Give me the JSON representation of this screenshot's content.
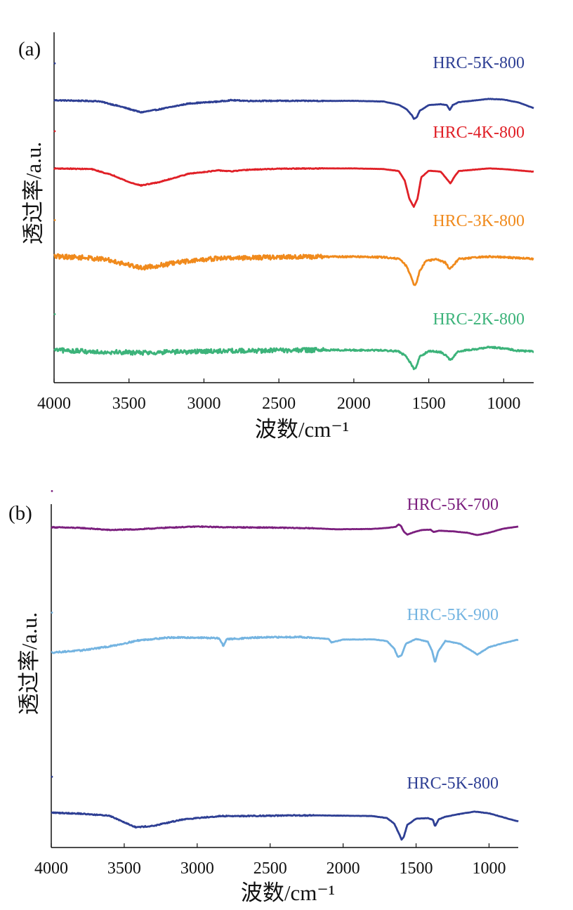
{
  "chart_data": [
    {
      "type": "line",
      "panel_label": "(a)",
      "xlabel": "波数/cm⁻¹",
      "ylabel": "透过率/a.u.",
      "xlim": [
        4000,
        800
      ],
      "x_reversed": true,
      "ylim": [
        0,
        100
      ],
      "xticks": [
        4000,
        3500,
        3000,
        2500,
        2000,
        1500,
        1000
      ],
      "series": [
        {
          "name": "HRC-5K-800",
          "color": "#2e3f94",
          "baseline": 84.1,
          "noise": 0.15,
          "points": [
            [
              4000,
              84
            ],
            [
              3700,
              83.7
            ],
            [
              3550,
              82
            ],
            [
              3420,
              80.3
            ],
            [
              3300,
              81.2
            ],
            [
              3100,
              83
            ],
            [
              2900,
              83.6
            ],
            [
              2820,
              84
            ],
            [
              2700,
              83.8
            ],
            [
              2500,
              83.8
            ],
            [
              2000,
              83.8
            ],
            [
              1800,
              83.6
            ],
            [
              1700,
              82.6
            ],
            [
              1650,
              81.3
            ],
            [
              1610,
              79.3
            ],
            [
              1600,
              78.3
            ],
            [
              1580,
              78.8
            ],
            [
              1560,
              80.8
            ],
            [
              1500,
              82.5
            ],
            [
              1420,
              82.8
            ],
            [
              1380,
              82.5
            ],
            [
              1360,
              81
            ],
            [
              1340,
              82.5
            ],
            [
              1300,
              83.4
            ],
            [
              1200,
              83.9
            ],
            [
              1100,
              84.4
            ],
            [
              1000,
              84.2
            ],
            [
              900,
              83.3
            ],
            [
              800,
              81.6
            ]
          ]
        },
        {
          "name": "HRC-4K-800",
          "color": "#e02027",
          "baseline": 63.4,
          "noise": 0.12,
          "points": [
            [
              4000,
              63.2
            ],
            [
              3750,
              63
            ],
            [
              3600,
              61
            ],
            [
              3500,
              59
            ],
            [
              3420,
              58
            ],
            [
              3300,
              59
            ],
            [
              3100,
              61.6
            ],
            [
              2900,
              62.6
            ],
            [
              2820,
              62.3
            ],
            [
              2700,
              62.8
            ],
            [
              2500,
              63.1
            ],
            [
              2200,
              63.2
            ],
            [
              2000,
              63.2
            ],
            [
              1800,
              63
            ],
            [
              1700,
              62.4
            ],
            [
              1660,
              59.5
            ],
            [
              1630,
              54
            ],
            [
              1600,
              51.5
            ],
            [
              1575,
              54
            ],
            [
              1550,
              60.5
            ],
            [
              1500,
              62.5
            ],
            [
              1420,
              62.2
            ],
            [
              1380,
              60
            ],
            [
              1355,
              58.6
            ],
            [
              1330,
              60.6
            ],
            [
              1300,
              62.4
            ],
            [
              1200,
              62.8
            ],
            [
              1100,
              63.2
            ],
            [
              1000,
              63
            ],
            [
              900,
              62.6
            ],
            [
              800,
              62.2
            ]
          ]
        },
        {
          "name": "HRC-3K-800",
          "color": "#f08a1c",
          "baseline": 36.3,
          "noise": 0.7,
          "points": [
            [
              4000,
              36.4
            ],
            [
              3800,
              36
            ],
            [
              3650,
              35.4
            ],
            [
              3500,
              33.8
            ],
            [
              3420,
              32.9
            ],
            [
              3300,
              33.6
            ],
            [
              3100,
              35
            ],
            [
              2900,
              35.8
            ],
            [
              2700,
              36
            ],
            [
              2400,
              36.2
            ],
            [
              2000,
              36.3
            ],
            [
              1800,
              36.1
            ],
            [
              1700,
              35.7
            ],
            [
              1650,
              33.5
            ],
            [
              1620,
              30.5
            ],
            [
              1600,
              27.6
            ],
            [
              1585,
              28
            ],
            [
              1560,
              32
            ],
            [
              1520,
              35
            ],
            [
              1450,
              35.5
            ],
            [
              1390,
              34.5
            ],
            [
              1360,
              32.5
            ],
            [
              1340,
              33.5
            ],
            [
              1300,
              35.6
            ],
            [
              1200,
              36
            ],
            [
              1100,
              36.3
            ],
            [
              1000,
              36.1
            ],
            [
              900,
              35.9
            ],
            [
              800,
              35.6
            ]
          ]
        },
        {
          "name": "HRC-2K-800",
          "color": "#3cb37a",
          "baseline": 7.6,
          "noise": 0.7,
          "points": [
            [
              4000,
              7.8
            ],
            [
              3800,
              7.4
            ],
            [
              3600,
              7.2
            ],
            [
              3420,
              7
            ],
            [
              3300,
              7.1
            ],
            [
              3100,
              7.3
            ],
            [
              2900,
              7.5
            ],
            [
              2700,
              7.6
            ],
            [
              2500,
              7.7
            ],
            [
              2200,
              7.8
            ],
            [
              2000,
              7.8
            ],
            [
              1800,
              7.7
            ],
            [
              1700,
              7.4
            ],
            [
              1650,
              5.8
            ],
            [
              1620,
              3.8
            ],
            [
              1600,
              2
            ],
            [
              1585,
              2.4
            ],
            [
              1560,
              5.8
            ],
            [
              1500,
              7.5
            ],
            [
              1420,
              7.2
            ],
            [
              1380,
              6
            ],
            [
              1355,
              4.6
            ],
            [
              1330,
              6
            ],
            [
              1300,
              7.5
            ],
            [
              1200,
              8
            ],
            [
              1100,
              8.7
            ],
            [
              1000,
              8.3
            ],
            [
              900,
              7.6
            ],
            [
              800,
              7.4
            ]
          ]
        }
      ]
    },
    {
      "type": "line",
      "panel_label": "(b)",
      "xlabel": "波数/cm⁻¹",
      "ylabel": "透过率/a.u.",
      "xlim": [
        4000,
        800
      ],
      "x_reversed": true,
      "ylim": [
        0,
        100
      ],
      "xticks": [
        4000,
        3500,
        3000,
        2500,
        2000,
        1500,
        1000
      ],
      "series": [
        {
          "name": "HRC-5K-700",
          "color": "#7b1f7e",
          "baseline": 92.5,
          "noise": 0.12,
          "points": [
            [
              4000,
              92.6
            ],
            [
              3800,
              92.4
            ],
            [
              3600,
              91.8
            ],
            [
              3400,
              92
            ],
            [
              3200,
              92.5
            ],
            [
              3000,
              92.8
            ],
            [
              2800,
              92.6
            ],
            [
              2500,
              92.5
            ],
            [
              2200,
              92.3
            ],
            [
              2050,
              92
            ],
            [
              1800,
              92.1
            ],
            [
              1700,
              92.4
            ],
            [
              1640,
              92.7
            ],
            [
              1620,
              93.4
            ],
            [
              1605,
              93.1
            ],
            [
              1585,
              91.4
            ],
            [
              1560,
              90.4
            ],
            [
              1520,
              91.1
            ],
            [
              1460,
              91.8
            ],
            [
              1400,
              91.9
            ],
            [
              1380,
              91.2
            ],
            [
              1340,
              91.6
            ],
            [
              1250,
              91.4
            ],
            [
              1150,
              91
            ],
            [
              1080,
              90.3
            ],
            [
              1000,
              91
            ],
            [
              900,
              92.2
            ],
            [
              800,
              92.8
            ]
          ]
        },
        {
          "name": "HRC-5K-900",
          "color": "#74b4e1",
          "baseline": 56.8,
          "noise": 0.2,
          "points": [
            [
              4000,
              55.8
            ],
            [
              3800,
              56.4
            ],
            [
              3600,
              57.6
            ],
            [
              3400,
              59.4
            ],
            [
              3200,
              60.2
            ],
            [
              3000,
              60.2
            ],
            [
              2850,
              60
            ],
            [
              2820,
              57.7
            ],
            [
              2800,
              59.7
            ],
            [
              2600,
              60.2
            ],
            [
              2300,
              60.4
            ],
            [
              2100,
              59.8
            ],
            [
              2080,
              58.8
            ],
            [
              2000,
              59.6
            ],
            [
              1800,
              59.7
            ],
            [
              1700,
              59.2
            ],
            [
              1650,
              57
            ],
            [
              1625,
              54.5
            ],
            [
              1600,
              55
            ],
            [
              1570,
              58.4
            ],
            [
              1500,
              59.8
            ],
            [
              1420,
              59
            ],
            [
              1390,
              56.3
            ],
            [
              1370,
              52.8
            ],
            [
              1350,
              56
            ],
            [
              1300,
              59.2
            ],
            [
              1200,
              58.4
            ],
            [
              1100,
              55.8
            ],
            [
              1080,
              55.2
            ],
            [
              1000,
              57.4
            ],
            [
              900,
              58.6
            ],
            [
              800,
              59.6
            ]
          ]
        },
        {
          "name": "HRC-5K-800",
          "color": "#2e3f94",
          "baseline": 8.6,
          "noise": 0.15,
          "points": [
            [
              4000,
              8.8
            ],
            [
              3800,
              8.5
            ],
            [
              3600,
              7.9
            ],
            [
              3500,
              6
            ],
            [
              3420,
              4.5
            ],
            [
              3300,
              4.9
            ],
            [
              3100,
              6.8
            ],
            [
              2900,
              7.6
            ],
            [
              2820,
              7.8
            ],
            [
              2700,
              7.8
            ],
            [
              2500,
              7.9
            ],
            [
              2200,
              8
            ],
            [
              2000,
              7.9
            ],
            [
              1800,
              7.8
            ],
            [
              1700,
              7.2
            ],
            [
              1650,
              5.6
            ],
            [
              1610,
              2
            ],
            [
              1600,
              0.9
            ],
            [
              1585,
              1.6
            ],
            [
              1560,
              5.2
            ],
            [
              1500,
              7
            ],
            [
              1420,
              7.2
            ],
            [
              1385,
              6.7
            ],
            [
              1370,
              4.8
            ],
            [
              1345,
              6.8
            ],
            [
              1300,
              7.6
            ],
            [
              1200,
              8.4
            ],
            [
              1100,
              9.1
            ],
            [
              1000,
              8.6
            ],
            [
              900,
              7.4
            ],
            [
              800,
              6.2
            ]
          ]
        }
      ]
    }
  ]
}
